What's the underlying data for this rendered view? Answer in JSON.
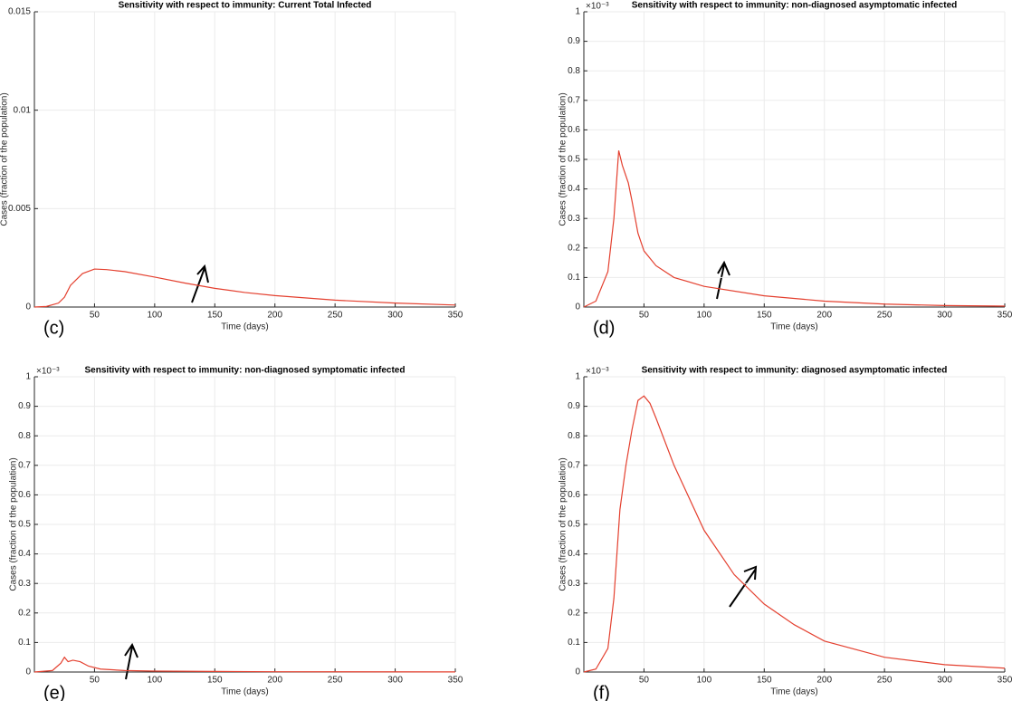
{
  "chart_data": [
    {
      "type": "line",
      "title": "Sensitivity with respect to immunity: Current Total Infected",
      "panel_label": "(c)",
      "x_label": "Time (days)",
      "y_label": "Cases (fraction of the population)",
      "xlim": [
        0,
        350
      ],
      "xticks": [
        50,
        100,
        150,
        200,
        250,
        300,
        350
      ],
      "ylim": [
        0,
        0.015
      ],
      "yticks": [
        0,
        0.005,
        0.01,
        0.015
      ],
      "grid": true,
      "x": [
        0,
        10,
        20,
        25,
        30,
        35,
        40,
        50,
        60,
        75,
        100,
        125,
        150,
        175,
        200,
        250,
        300,
        350
      ],
      "series": [
        {
          "color": "#e4402f",
          "values": [
            0,
            3e-05,
            0.0002,
            0.0005,
            0.0011,
            0.0014,
            0.0017,
            0.00193,
            0.0019,
            0.0018,
            0.00152,
            0.00122,
            0.00095,
            0.00074,
            0.00058,
            0.00035,
            0.0002,
            0.0001
          ]
        }
      ]
    },
    {
      "type": "line",
      "title": "Sensitivity with respect to immunity: non-diagnosed asymptomatic infected",
      "panel_label": "(d)",
      "x_label": "Time (days)",
      "y_label": "Cases (fraction of the population)",
      "y_multiplier": "×10⁻³",
      "xlim": [
        0,
        350
      ],
      "xticks": [
        50,
        100,
        150,
        200,
        250,
        300,
        350
      ],
      "ylim": [
        0,
        1
      ],
      "yticks": [
        0,
        0.1,
        0.2,
        0.3,
        0.4,
        0.5,
        0.6,
        0.7,
        0.8,
        0.9,
        1
      ],
      "grid": true,
      "x": [
        0,
        10,
        20,
        25,
        29,
        32,
        37,
        40,
        45,
        50,
        60,
        75,
        100,
        150,
        200,
        250,
        300,
        350
      ],
      "series": [
        {
          "color": "#e4402f",
          "values": [
            0,
            0.02,
            0.12,
            0.3,
            0.53,
            0.48,
            0.42,
            0.36,
            0.25,
            0.19,
            0.14,
            0.1,
            0.07,
            0.038,
            0.02,
            0.01,
            0.005,
            0.003
          ]
        }
      ]
    },
    {
      "type": "line",
      "title": "Sensitivity with respect to immunity: non-diagnosed symptomatic infected",
      "panel_label": "(e)",
      "x_label": "Time (days)",
      "y_label": "Cases (fraction of the population)",
      "y_multiplier": "×10⁻³",
      "xlim": [
        0,
        350
      ],
      "xticks": [
        50,
        100,
        150,
        200,
        250,
        300,
        350
      ],
      "ylim": [
        0,
        1
      ],
      "yticks": [
        0,
        0.1,
        0.2,
        0.3,
        0.4,
        0.5,
        0.6,
        0.7,
        0.8,
        0.9,
        1
      ],
      "grid": true,
      "x": [
        0,
        15,
        22,
        25,
        28,
        32,
        38,
        45,
        55,
        75,
        100,
        150,
        200,
        350
      ],
      "series": [
        {
          "color": "#e4402f",
          "values": [
            0,
            0.005,
            0.03,
            0.05,
            0.035,
            0.04,
            0.035,
            0.02,
            0.01,
            0.005,
            0.003,
            0.002,
            0.001,
            0.0005
          ]
        }
      ]
    },
    {
      "type": "line",
      "title": "Sensitivity with respect to immunity: diagnosed asymptomatic infected",
      "panel_label": "(f)",
      "x_label": "Time (days)",
      "y_label": "Cases (fraction of the population)",
      "y_multiplier": "×10⁻³",
      "xlim": [
        0,
        350
      ],
      "xticks": [
        50,
        100,
        150,
        200,
        250,
        300,
        350
      ],
      "ylim": [
        0,
        1
      ],
      "yticks": [
        0,
        0.1,
        0.2,
        0.3,
        0.4,
        0.5,
        0.6,
        0.7,
        0.8,
        0.9,
        1
      ],
      "grid": true,
      "x": [
        0,
        10,
        20,
        25,
        30,
        35,
        40,
        45,
        50,
        55,
        60,
        75,
        100,
        125,
        150,
        175,
        200,
        250,
        300,
        350
      ],
      "series": [
        {
          "color": "#e4402f",
          "values": [
            0,
            0.01,
            0.08,
            0.25,
            0.55,
            0.7,
            0.82,
            0.92,
            0.935,
            0.91,
            0.86,
            0.7,
            0.48,
            0.33,
            0.23,
            0.16,
            0.105,
            0.05,
            0.025,
            0.013
          ]
        }
      ]
    }
  ]
}
